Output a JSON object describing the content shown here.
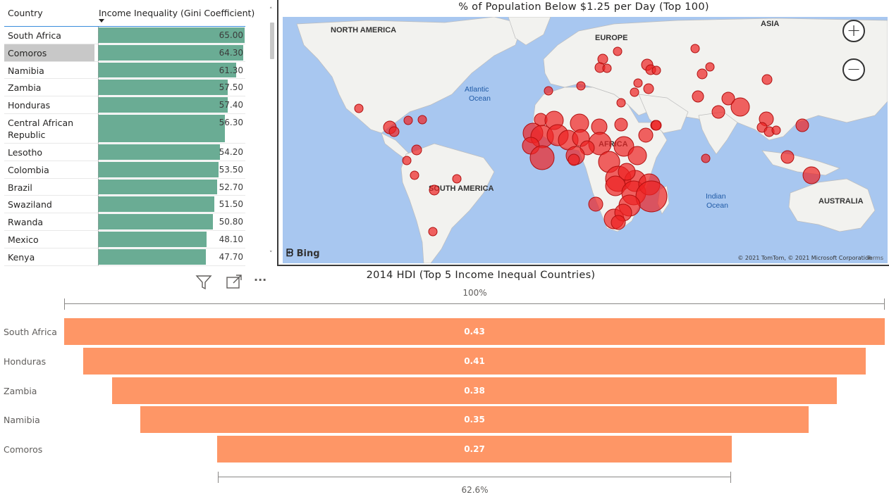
{
  "table": {
    "headers": {
      "country": "Country",
      "gini": "Income Inequality (Gini Coefficient)"
    },
    "max_value": 65.0,
    "rows": [
      {
        "country": "South Africa",
        "value": "65.00",
        "num": 65.0,
        "selected": false
      },
      {
        "country": "Comoros",
        "value": "64.30",
        "num": 64.3,
        "selected": true
      },
      {
        "country": "Namibia",
        "value": "61.30",
        "num": 61.3,
        "selected": false
      },
      {
        "country": "Zambia",
        "value": "57.50",
        "num": 57.5,
        "selected": false
      },
      {
        "country": "Honduras",
        "value": "57.40",
        "num": 57.4,
        "selected": false
      },
      {
        "country": "Central African Republic",
        "value": "56.30",
        "num": 56.3,
        "selected": false
      },
      {
        "country": "Lesotho",
        "value": "54.20",
        "num": 54.2,
        "selected": false
      },
      {
        "country": "Colombia",
        "value": "53.50",
        "num": 53.5,
        "selected": false
      },
      {
        "country": "Brazil",
        "value": "52.70",
        "num": 52.7,
        "selected": false
      },
      {
        "country": "Swaziland",
        "value": "51.50",
        "num": 51.5,
        "selected": false
      },
      {
        "country": "Rwanda",
        "value": "50.80",
        "num": 50.8,
        "selected": false
      },
      {
        "country": "Mexico",
        "value": "48.10",
        "num": 48.1,
        "selected": false
      },
      {
        "country": "Kenya",
        "value": "47.70",
        "num": 47.7,
        "selected": false
      }
    ],
    "scroll_up_glyph": "˄",
    "scroll_down_glyph": "˅"
  },
  "map": {
    "title": "% of Population Below $1.25 per Day (Top 100)",
    "labels": {
      "north_america": "NORTH AMERICA",
      "europe": "EUROPE",
      "asia": "ASIA",
      "africa": "AFRICA",
      "south_america": "SOUTH AMERICA",
      "australia": "AUSTRALIA",
      "atlantic_1": "Atlantic",
      "atlantic_2": "Ocean",
      "indian_1": "Indian",
      "indian_2": "Ocean"
    },
    "zoom_in": "+",
    "zoom_out": "−",
    "bing": "Bing",
    "copyright": "© 2021 TomTom, © 2021 Microsoft Corporation",
    "terms": "Terms",
    "colors": {
      "ocean": "#a8c7f0",
      "land": "#f2f2ef",
      "bubble": "#ee2222"
    }
  },
  "funnel": {
    "title": "2014 HDI (Top 5 Income Inequal Countries)",
    "top_pct": "100%",
    "bottom_pct": "62.6%",
    "toolbar": {
      "filter": "filter-icon",
      "focus": "focus-mode-icon",
      "more": "···"
    },
    "color": "#fe9666"
  },
  "chart_data": {
    "type": "bar",
    "title": "2014 HDI (Top 5 Income Inequal Countries)",
    "categories": [
      "South Africa",
      "Honduras",
      "Zambia",
      "Namibia",
      "Comoros"
    ],
    "values": [
      0.43,
      0.41,
      0.38,
      0.35,
      0.27
    ],
    "labels": [
      "0.43",
      "0.41",
      "0.38",
      "0.35",
      "0.27"
    ]
  }
}
